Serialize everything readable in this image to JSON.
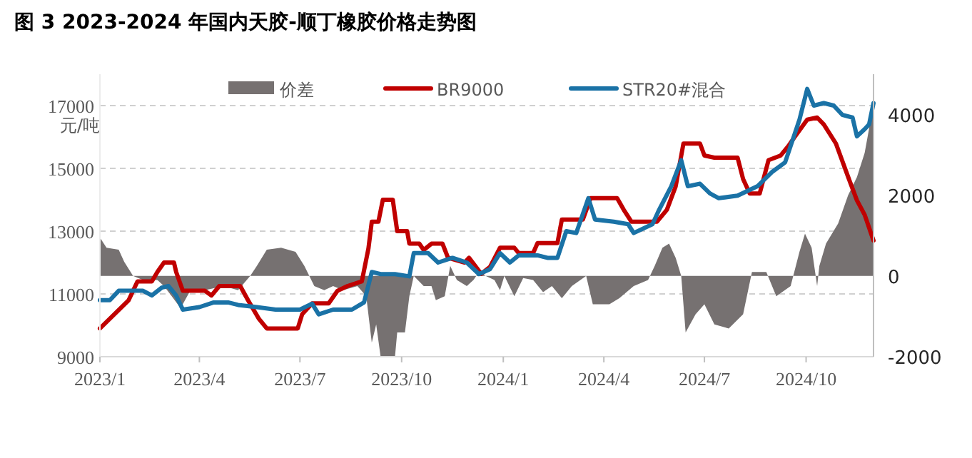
{
  "chart_data": {
    "type": "line",
    "title": "图 3 2023-2024 年国内天胶-顺丁橡胶价格走势图",
    "ylabel": "元/吨",
    "xlim": [
      "2023-01-01",
      "2024-12-01"
    ],
    "xticks": [
      {
        "value": "2023-01-01",
        "label": "2023/1"
      },
      {
        "value": "2023-04-01",
        "label": "2023/4"
      },
      {
        "value": "2023-07-01",
        "label": "2023/7"
      },
      {
        "value": "2023-10-01",
        "label": "2023/10"
      },
      {
        "value": "2024-01-01",
        "label": "2024/1"
      },
      {
        "value": "2024-04-01",
        "label": "2024/4"
      },
      {
        "value": "2024-07-01",
        "label": "2024/7"
      },
      {
        "value": "2024-10-01",
        "label": "2024/10"
      }
    ],
    "ylim": [
      9000,
      18000
    ],
    "yticks": [
      9000,
      11000,
      13000,
      15000,
      17000
    ],
    "y2lim": [
      -2000,
      5000
    ],
    "y2ticks": [
      -2000,
      0,
      2000,
      4000
    ],
    "grid": "y",
    "legend": "top",
    "series": [
      {
        "name": "价差",
        "type": "area",
        "axis": "y2",
        "color": "#767171",
        "x": [
          "2023-01-01",
          "2023-01-07",
          "2023-01-18",
          "2023-01-23",
          "2023-01-31",
          "2023-02-09",
          "2023-02-22",
          "2023-02-28",
          "2023-03-07",
          "2023-03-15",
          "2023-03-24",
          "2023-04-06",
          "2023-04-23",
          "2023-05-06",
          "2023-05-17",
          "2023-05-23",
          "2023-06-01",
          "2023-06-14",
          "2023-06-27",
          "2023-07-05",
          "2023-07-14",
          "2023-07-23",
          "2023-07-31",
          "2023-08-09",
          "2023-08-22",
          "2023-08-30",
          "2023-09-04",
          "2023-09-08",
          "2023-09-12",
          "2023-09-25",
          "2023-09-27",
          "2023-10-04",
          "2023-10-08",
          "2023-10-12",
          "2023-10-21",
          "2023-10-28",
          "2023-11-01",
          "2023-11-09",
          "2023-11-14",
          "2023-11-20",
          "2023-11-29",
          "2023-12-05",
          "2023-12-10",
          "2023-12-16",
          "2023-12-24",
          "2023-12-29",
          "2024-01-02",
          "2024-01-11",
          "2024-01-19",
          "2024-01-28",
          "2024-02-06",
          "2024-02-14",
          "2024-02-23",
          "2024-03-03",
          "2024-03-16",
          "2024-03-22",
          "2024-04-06",
          "2024-04-15",
          "2024-04-28",
          "2024-05-11",
          "2024-05-17",
          "2024-05-24",
          "2024-05-30",
          "2024-06-05",
          "2024-06-10",
          "2024-06-14",
          "2024-06-23",
          "2024-07-01",
          "2024-07-10",
          "2024-07-23",
          "2024-08-05",
          "2024-08-13",
          "2024-08-26",
          "2024-09-04",
          "2024-09-17",
          "2024-09-25",
          "2024-09-30",
          "2024-10-06",
          "2024-10-11",
          "2024-10-13",
          "2024-10-19",
          "2024-10-30",
          "2024-11-08",
          "2024-11-16",
          "2024-11-23",
          "2024-11-27",
          "2024-12-01"
        ],
        "values": [
          950,
          700,
          650,
          350,
          0,
          -100,
          -100,
          -250,
          -500,
          -800,
          -350,
          -350,
          -250,
          -350,
          0,
          250,
          650,
          700,
          600,
          250,
          -250,
          -350,
          -250,
          -350,
          -250,
          -500,
          -1650,
          -1200,
          -2000,
          -2000,
          -1400,
          -1400,
          -500,
          0,
          -250,
          -250,
          -600,
          -500,
          250,
          -100,
          -250,
          -100,
          100,
          0,
          -100,
          -350,
          0,
          -500,
          -50,
          -100,
          -400,
          -250,
          -550,
          -250,
          0,
          -700,
          -700,
          -550,
          -250,
          -100,
          250,
          700,
          800,
          450,
          0,
          -1400,
          -950,
          -700,
          -1200,
          -1300,
          -950,
          100,
          100,
          -500,
          -250,
          600,
          1050,
          700,
          -250,
          250,
          800,
          1300,
          2000,
          2450,
          3050,
          3650,
          4350
        ]
      },
      {
        "name": "BR9000",
        "color": "#c00000",
        "x": [
          "2023-01-01",
          "2023-01-14",
          "2023-01-27",
          "2023-02-04",
          "2023-02-17",
          "2023-02-22",
          "2023-02-28",
          "2023-03-09",
          "2023-03-11",
          "2023-03-17",
          "2023-04-06",
          "2023-04-12",
          "2023-04-19",
          "2023-05-08",
          "2023-05-15",
          "2023-05-25",
          "2023-06-01",
          "2023-06-29",
          "2023-07-03",
          "2023-07-12",
          "2023-07-27",
          "2023-08-04",
          "2023-08-13",
          "2023-08-26",
          "2023-09-01",
          "2023-09-04",
          "2023-09-10",
          "2023-09-14",
          "2023-09-23",
          "2023-09-27",
          "2023-10-06",
          "2023-10-08",
          "2023-10-17",
          "2023-10-21",
          "2023-10-28",
          "2023-11-07",
          "2023-11-12",
          "2023-11-27",
          "2023-12-01",
          "2023-12-12",
          "2023-12-20",
          "2023-12-29",
          "2024-01-11",
          "2024-01-15",
          "2024-01-28",
          "2024-02-01",
          "2024-02-19",
          "2024-02-23",
          "2024-03-13",
          "2024-03-20",
          "2024-04-13",
          "2024-04-19",
          "2024-04-26",
          "2024-05-19",
          "2024-05-28",
          "2024-06-05",
          "2024-06-12",
          "2024-06-27",
          "2024-07-01",
          "2024-07-10",
          "2024-07-31",
          "2024-08-05",
          "2024-08-11",
          "2024-08-20",
          "2024-08-28",
          "2024-09-08",
          "2024-09-15",
          "2024-09-21",
          "2024-10-02",
          "2024-10-11",
          "2024-10-17",
          "2024-10-28",
          "2024-11-08",
          "2024-11-16",
          "2024-11-23",
          "2024-12-01"
        ],
        "values": [
          9900,
          10350,
          10800,
          11400,
          11400,
          11700,
          12000,
          12000,
          11700,
          11100,
          11100,
          10950,
          11250,
          11250,
          10800,
          10200,
          9900,
          9900,
          10350,
          10700,
          10700,
          11100,
          11250,
          11400,
          12450,
          13300,
          13300,
          14000,
          14000,
          13000,
          13000,
          12600,
          12600,
          12400,
          12600,
          12600,
          12150,
          12000,
          12150,
          11640,
          11860,
          12470,
          12470,
          12300,
          12300,
          12620,
          12620,
          13370,
          13370,
          14050,
          14050,
          13680,
          13300,
          13300,
          13680,
          14430,
          15790,
          15790,
          15410,
          15340,
          15340,
          14660,
          14200,
          14200,
          15260,
          15410,
          15710,
          16020,
          16550,
          16620,
          16400,
          15790,
          14730,
          13980,
          13520,
          12700
        ]
      },
      {
        "name": "STR20#混合",
        "color": "#1a72a6",
        "x": [
          "2023-01-01",
          "2023-01-10",
          "2023-01-18",
          "2023-02-09",
          "2023-02-17",
          "2023-02-26",
          "2023-03-04",
          "2023-03-11",
          "2023-03-17",
          "2023-04-01",
          "2023-04-14",
          "2023-04-27",
          "2023-05-06",
          "2023-05-23",
          "2023-06-09",
          "2023-07-01",
          "2023-07-12",
          "2023-07-18",
          "2023-07-31",
          "2023-08-17",
          "2023-08-28",
          "2023-09-04",
          "2023-09-12",
          "2023-09-25",
          "2023-10-08",
          "2023-10-12",
          "2023-10-25",
          "2023-11-03",
          "2023-11-16",
          "2023-11-29",
          "2023-12-10",
          "2023-12-20",
          "2023-12-29",
          "2024-01-07",
          "2024-01-15",
          "2024-02-01",
          "2024-02-10",
          "2024-02-19",
          "2024-02-27",
          "2024-03-07",
          "2024-03-18",
          "2024-03-24",
          "2024-04-10",
          "2024-04-23",
          "2024-04-28",
          "2024-05-15",
          "2024-05-21",
          "2024-06-01",
          "2024-06-10",
          "2024-06-16",
          "2024-06-27",
          "2024-07-06",
          "2024-07-14",
          "2024-07-31",
          "2024-08-18",
          "2024-08-31",
          "2024-09-12",
          "2024-09-25",
          "2024-10-02",
          "2024-10-08",
          "2024-10-17",
          "2024-10-26",
          "2024-11-03",
          "2024-11-12",
          "2024-11-16",
          "2024-11-23",
          "2024-11-27",
          "2024-12-01"
        ],
        "values": [
          10800,
          10800,
          11100,
          11100,
          10950,
          11200,
          11250,
          10950,
          10500,
          10580,
          10730,
          10730,
          10650,
          10580,
          10500,
          10500,
          10690,
          10350,
          10500,
          10500,
          10730,
          11700,
          11630,
          11630,
          11560,
          12300,
          12300,
          12000,
          12150,
          12000,
          11630,
          11790,
          12300,
          12000,
          12230,
          12230,
          12150,
          12150,
          13000,
          12940,
          14050,
          13370,
          13300,
          13220,
          12940,
          13220,
          13680,
          14430,
          15260,
          14430,
          14510,
          14200,
          14050,
          14130,
          14430,
          14880,
          15190,
          16550,
          17530,
          17000,
          17080,
          17000,
          16700,
          16620,
          16020,
          16250,
          16400,
          17080
        ]
      }
    ]
  }
}
